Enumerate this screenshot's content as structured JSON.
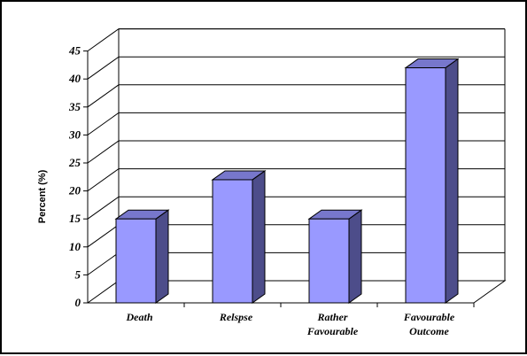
{
  "chart_data": {
    "type": "bar",
    "style": "3d",
    "categories": [
      [
        "Death"
      ],
      [
        "Relspse"
      ],
      [
        "Rather",
        "Favourable"
      ],
      [
        "Favourable",
        "Outcome"
      ]
    ],
    "values": [
      15,
      22,
      15,
      42
    ],
    "ylabel": "Percent (%)",
    "xlabel": "",
    "ylim": [
      0,
      45
    ],
    "yticks": [
      0,
      5,
      10,
      15,
      20,
      25,
      30,
      35,
      40,
      45
    ],
    "grid": true,
    "legend": "none",
    "colors": {
      "bar_front": "#9999ff",
      "bar_side": "#4d4d8a",
      "bar_top": "#7777cc",
      "outline": "#000000",
      "grid": "#000000"
    }
  }
}
